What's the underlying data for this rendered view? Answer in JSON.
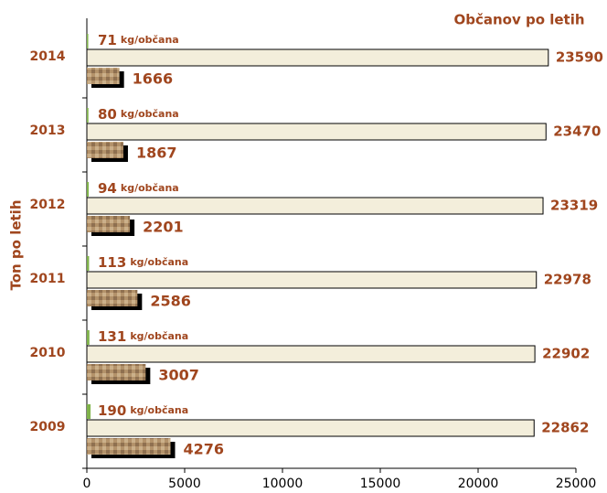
{
  "chart_data": {
    "type": "bar",
    "orientation": "horizontal",
    "categories": [
      "2009",
      "2010",
      "2011",
      "2012",
      "2013",
      "2014"
    ],
    "series": [
      {
        "name": "kg/občana",
        "color": "#7fb24a",
        "values": [
          190,
          131,
          113,
          94,
          80,
          71
        ]
      },
      {
        "name": "Občanov po letih",
        "color": "#f3eedb",
        "values": [
          22862,
          22902,
          22978,
          23319,
          23470,
          23590
        ]
      },
      {
        "name": "Ton po letih",
        "color": "#b3926a",
        "values": [
          4276,
          3007,
          2586,
          2201,
          1867,
          1666
        ]
      }
    ],
    "xlim": [
      0,
      25000
    ],
    "xticks": [
      0,
      5000,
      10000,
      15000,
      20000,
      25000
    ]
  }
}
